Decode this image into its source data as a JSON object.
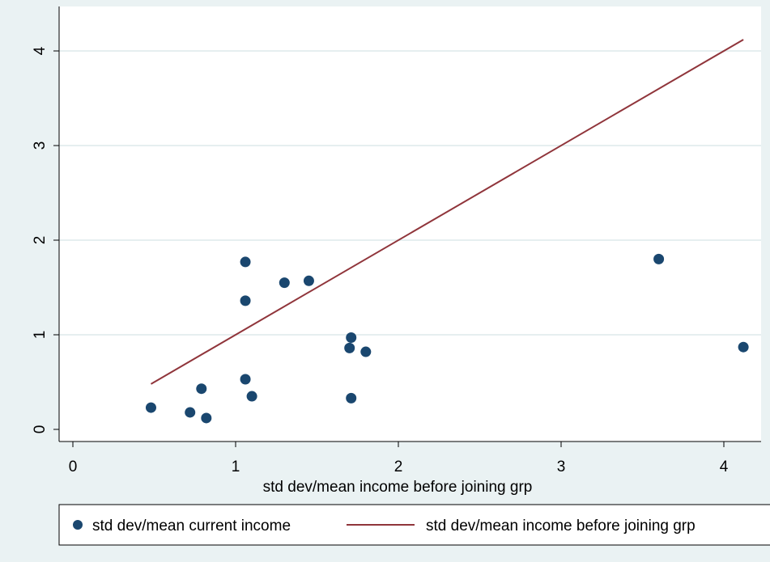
{
  "chart_data": {
    "type": "scatter",
    "title": "",
    "xlabel": "std dev/mean income before joining grp",
    "ylabel": "",
    "xlim": [
      0,
      4.2
    ],
    "ylim": [
      0,
      4.2
    ],
    "xticks": [
      0,
      1,
      2,
      3,
      4
    ],
    "yticks": [
      0,
      1,
      2,
      3,
      4
    ],
    "xtick_labels": [
      "0",
      "1",
      "2",
      "3",
      "4"
    ],
    "ytick_labels": [
      "0",
      "1",
      "2",
      "3",
      "4"
    ],
    "grid": "horizontal",
    "legend_position": "bottom",
    "series": [
      {
        "name": "std dev/mean current income",
        "type": "scatter",
        "color": "#1a476f",
        "points": [
          {
            "x": 0.48,
            "y": 0.23
          },
          {
            "x": 0.72,
            "y": 0.18
          },
          {
            "x": 0.79,
            "y": 0.43
          },
          {
            "x": 0.82,
            "y": 0.12
          },
          {
            "x": 1.06,
            "y": 1.77
          },
          {
            "x": 1.06,
            "y": 1.36
          },
          {
            "x": 1.06,
            "y": 0.53
          },
          {
            "x": 1.1,
            "y": 0.35
          },
          {
            "x": 1.3,
            "y": 1.55
          },
          {
            "x": 1.45,
            "y": 1.57
          },
          {
            "x": 1.71,
            "y": 0.97
          },
          {
            "x": 1.7,
            "y": 0.86
          },
          {
            "x": 1.71,
            "y": 0.33
          },
          {
            "x": 1.8,
            "y": 0.82
          },
          {
            "x": 3.6,
            "y": 1.8
          },
          {
            "x": 4.12,
            "y": 0.87
          }
        ]
      },
      {
        "name": "std dev/mean income before joining grp",
        "type": "line",
        "color": "#90353b",
        "points": [
          {
            "x": 0.48,
            "y": 0.48
          },
          {
            "x": 4.12,
            "y": 4.12
          }
        ]
      }
    ]
  }
}
